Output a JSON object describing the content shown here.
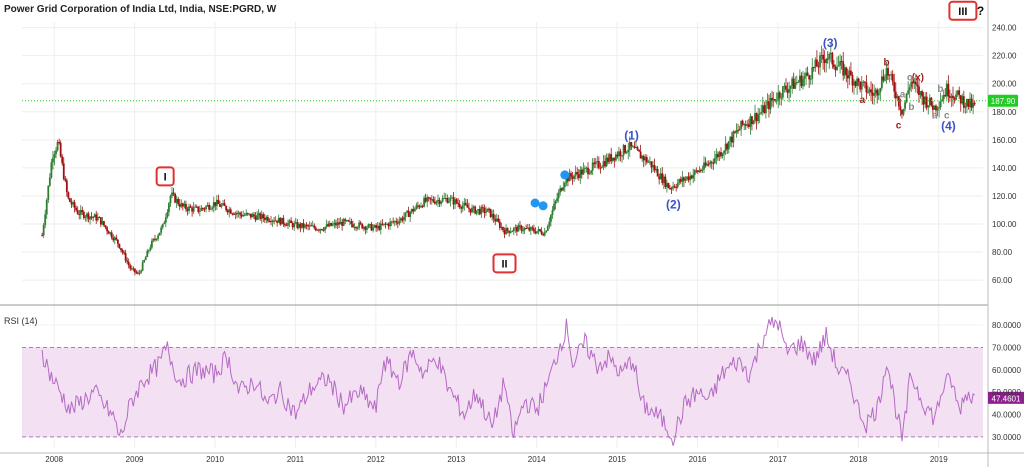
{
  "header": {
    "title": "Power Grid Corporation of India Ltd, India, NSE:PGRD, W",
    "help_glyph": "?"
  },
  "rsi": {
    "label": "RSI (14)",
    "last_label": "47.4601",
    "upper_band": 70,
    "lower_band": 30
  },
  "price": {
    "last_label": "187.90"
  },
  "colors": {
    "up": "#2e7d32",
    "down": "#a00f0f",
    "rsi": "#b56ac4",
    "band_fill": "#f3e1f3",
    "last_price": "#22cc22",
    "rsi_tag": "#8e1f8e",
    "wave_blue": "#3d52c8",
    "wave_red": "#9e1b1b",
    "wave_gray": "#888888",
    "box_red": "#e03030"
  },
  "chart_data": [
    {
      "type": "candlestick",
      "title": "",
      "x_unit": "year",
      "x_ticks": [
        "2008",
        "2009",
        "2010",
        "2011",
        "2012",
        "2013",
        "2014",
        "2015",
        "2016",
        "2017",
        "2018",
        "2019"
      ],
      "y_ticks": [
        "60.00",
        "80.00",
        "100.00",
        "120.00",
        "140.00",
        "160.00",
        "180.00",
        "200.00",
        "220.00",
        "240.00"
      ],
      "ylim": [
        48,
        244
      ],
      "xlim": [
        2007.6,
        2019.55
      ],
      "grid": true,
      "keypoints": [
        [
          2007.85,
          92
        ],
        [
          2007.98,
          150
        ],
        [
          2008.05,
          158
        ],
        [
          2008.17,
          118
        ],
        [
          2008.3,
          108
        ],
        [
          2008.55,
          104
        ],
        [
          2008.8,
          86
        ],
        [
          2008.95,
          68
        ],
        [
          2009.05,
          64
        ],
        [
          2009.2,
          85
        ],
        [
          2009.35,
          98
        ],
        [
          2009.45,
          121
        ],
        [
          2009.6,
          112
        ],
        [
          2009.8,
          110
        ],
        [
          2010.0,
          115
        ],
        [
          2010.3,
          107
        ],
        [
          2010.7,
          104
        ],
        [
          2011.0,
          99
        ],
        [
          2011.3,
          97
        ],
        [
          2011.6,
          101
        ],
        [
          2012.0,
          97
        ],
        [
          2012.3,
          103
        ],
        [
          2012.6,
          116
        ],
        [
          2012.9,
          118
        ],
        [
          2013.2,
          110
        ],
        [
          2013.4,
          109
        ],
        [
          2013.6,
          95
        ],
        [
          2013.8,
          97
        ],
        [
          2014.1,
          94
        ],
        [
          2014.25,
          118
        ],
        [
          2014.35,
          132
        ],
        [
          2014.6,
          138
        ],
        [
          2014.8,
          143
        ],
        [
          2015.0,
          150
        ],
        [
          2015.15,
          155
        ],
        [
          2015.4,
          144
        ],
        [
          2015.65,
          126
        ],
        [
          2015.9,
          134
        ],
        [
          2016.1,
          141
        ],
        [
          2016.3,
          152
        ],
        [
          2016.55,
          170
        ],
        [
          2016.8,
          180
        ],
        [
          2017.05,
          195
        ],
        [
          2017.35,
          205
        ],
        [
          2017.6,
          220
        ],
        [
          2017.85,
          208
        ],
        [
          2018.0,
          200
        ],
        [
          2018.2,
          192
        ],
        [
          2018.35,
          210
        ],
        [
          2018.45,
          196
        ],
        [
          2018.55,
          180
        ],
        [
          2018.65,
          202
        ],
        [
          2018.8,
          190
        ],
        [
          2018.95,
          183
        ],
        [
          2019.1,
          196
        ],
        [
          2019.25,
          190
        ],
        [
          2019.35,
          186
        ],
        [
          2019.45,
          183
        ]
      ],
      "annotations": [
        {
          "text": "I",
          "x": 2009.38,
          "y": 134,
          "style": "box"
        },
        {
          "text": "II",
          "x": 2013.6,
          "y": 72,
          "style": "box"
        },
        {
          "text": "III",
          "x": 2019.3,
          "y": 252,
          "style": "box"
        },
        {
          "text": "(1)",
          "x": 2015.18,
          "y": 163,
          "style": "blue"
        },
        {
          "text": "(2)",
          "x": 2015.7,
          "y": 114,
          "style": "blue"
        },
        {
          "text": "(3)",
          "x": 2017.65,
          "y": 229,
          "style": "blue"
        },
        {
          "text": "(4)",
          "x": 2019.12,
          "y": 170,
          "style": "blue"
        },
        {
          "text": "b",
          "x": 2018.35,
          "y": 216,
          "style": "red"
        },
        {
          "text": "a",
          "x": 2018.05,
          "y": 189,
          "style": "red"
        },
        {
          "text": "c",
          "x": 2018.5,
          "y": 171,
          "style": "red"
        },
        {
          "text": "(x)",
          "x": 2018.74,
          "y": 205,
          "style": "red"
        },
        {
          "text": "c",
          "x": 2018.64,
          "y": 205,
          "style": "gray"
        },
        {
          "text": "a",
          "x": 2018.55,
          "y": 193,
          "style": "gray"
        },
        {
          "text": "b",
          "x": 2018.66,
          "y": 184,
          "style": "gray"
        },
        {
          "text": "b",
          "x": 2019.02,
          "y": 197,
          "style": "gray"
        },
        {
          "text": "a",
          "x": 2018.95,
          "y": 178,
          "style": "gray"
        },
        {
          "text": "c",
          "x": 2019.1,
          "y": 178,
          "style": "gray"
        }
      ],
      "markers": [
        {
          "x": 2013.98,
          "y": 115
        },
        {
          "x": 2014.08,
          "y": 113
        },
        {
          "x": 2014.35,
          "y": 135
        }
      ]
    },
    {
      "type": "line",
      "title": "RSI (14)",
      "y_ticks": [
        "30.0000",
        "40.0000",
        "50.0000",
        "60.0000",
        "70.0000",
        "80.0000"
      ],
      "ylim": [
        25,
        85
      ],
      "xlim": [
        2007.6,
        2019.55
      ],
      "keypoints": [
        [
          2007.85,
          68
        ],
        [
          2007.95,
          58
        ],
        [
          2008.2,
          42
        ],
        [
          2008.5,
          50
        ],
        [
          2008.75,
          38
        ],
        [
          2008.82,
          29
        ],
        [
          2008.95,
          45
        ],
        [
          2009.1,
          55
        ],
        [
          2009.3,
          62
        ],
        [
          2009.4,
          70
        ],
        [
          2009.55,
          55
        ],
        [
          2009.8,
          60
        ],
        [
          2010.0,
          58
        ],
        [
          2010.15,
          66
        ],
        [
          2010.3,
          50
        ],
        [
          2010.5,
          55
        ],
        [
          2010.65,
          44
        ],
        [
          2010.8,
          51
        ],
        [
          2011.0,
          40
        ],
        [
          2011.2,
          52
        ],
        [
          2011.4,
          56
        ],
        [
          2011.6,
          44
        ],
        [
          2011.8,
          50
        ],
        [
          2012.0,
          42
        ],
        [
          2012.1,
          64
        ],
        [
          2012.3,
          55
        ],
        [
          2012.45,
          68
        ],
        [
          2012.6,
          58
        ],
        [
          2012.75,
          66
        ],
        [
          2012.9,
          52
        ],
        [
          2013.1,
          40
        ],
        [
          2013.25,
          50
        ],
        [
          2013.45,
          34
        ],
        [
          2013.6,
          55
        ],
        [
          2013.7,
          30
        ],
        [
          2013.85,
          46
        ],
        [
          2014.0,
          42
        ],
        [
          2014.15,
          55
        ],
        [
          2014.3,
          72
        ],
        [
          2014.38,
          80
        ],
        [
          2014.45,
          62
        ],
        [
          2014.6,
          72
        ],
        [
          2014.75,
          62
        ],
        [
          2014.9,
          65
        ],
        [
          2015.05,
          58
        ],
        [
          2015.2,
          65
        ],
        [
          2015.3,
          45
        ],
        [
          2015.55,
          38
        ],
        [
          2015.7,
          30
        ],
        [
          2015.85,
          45
        ],
        [
          2016.0,
          50
        ],
        [
          2016.15,
          46
        ],
        [
          2016.3,
          58
        ],
        [
          2016.5,
          64
        ],
        [
          2016.65,
          58
        ],
        [
          2016.85,
          78
        ],
        [
          2017.0,
          82
        ],
        [
          2017.1,
          68
        ],
        [
          2017.3,
          72
        ],
        [
          2017.45,
          64
        ],
        [
          2017.6,
          75
        ],
        [
          2017.75,
          60
        ],
        [
          2017.9,
          55
        ],
        [
          2018.0,
          42
        ],
        [
          2018.1,
          36
        ],
        [
          2018.25,
          44
        ],
        [
          2018.35,
          65
        ],
        [
          2018.48,
          40
        ],
        [
          2018.55,
          28
        ],
        [
          2018.65,
          58
        ],
        [
          2018.8,
          46
        ],
        [
          2018.95,
          38
        ],
        [
          2019.05,
          52
        ],
        [
          2019.15,
          56
        ],
        [
          2019.25,
          42
        ],
        [
          2019.35,
          50
        ],
        [
          2019.45,
          47
        ]
      ]
    }
  ]
}
